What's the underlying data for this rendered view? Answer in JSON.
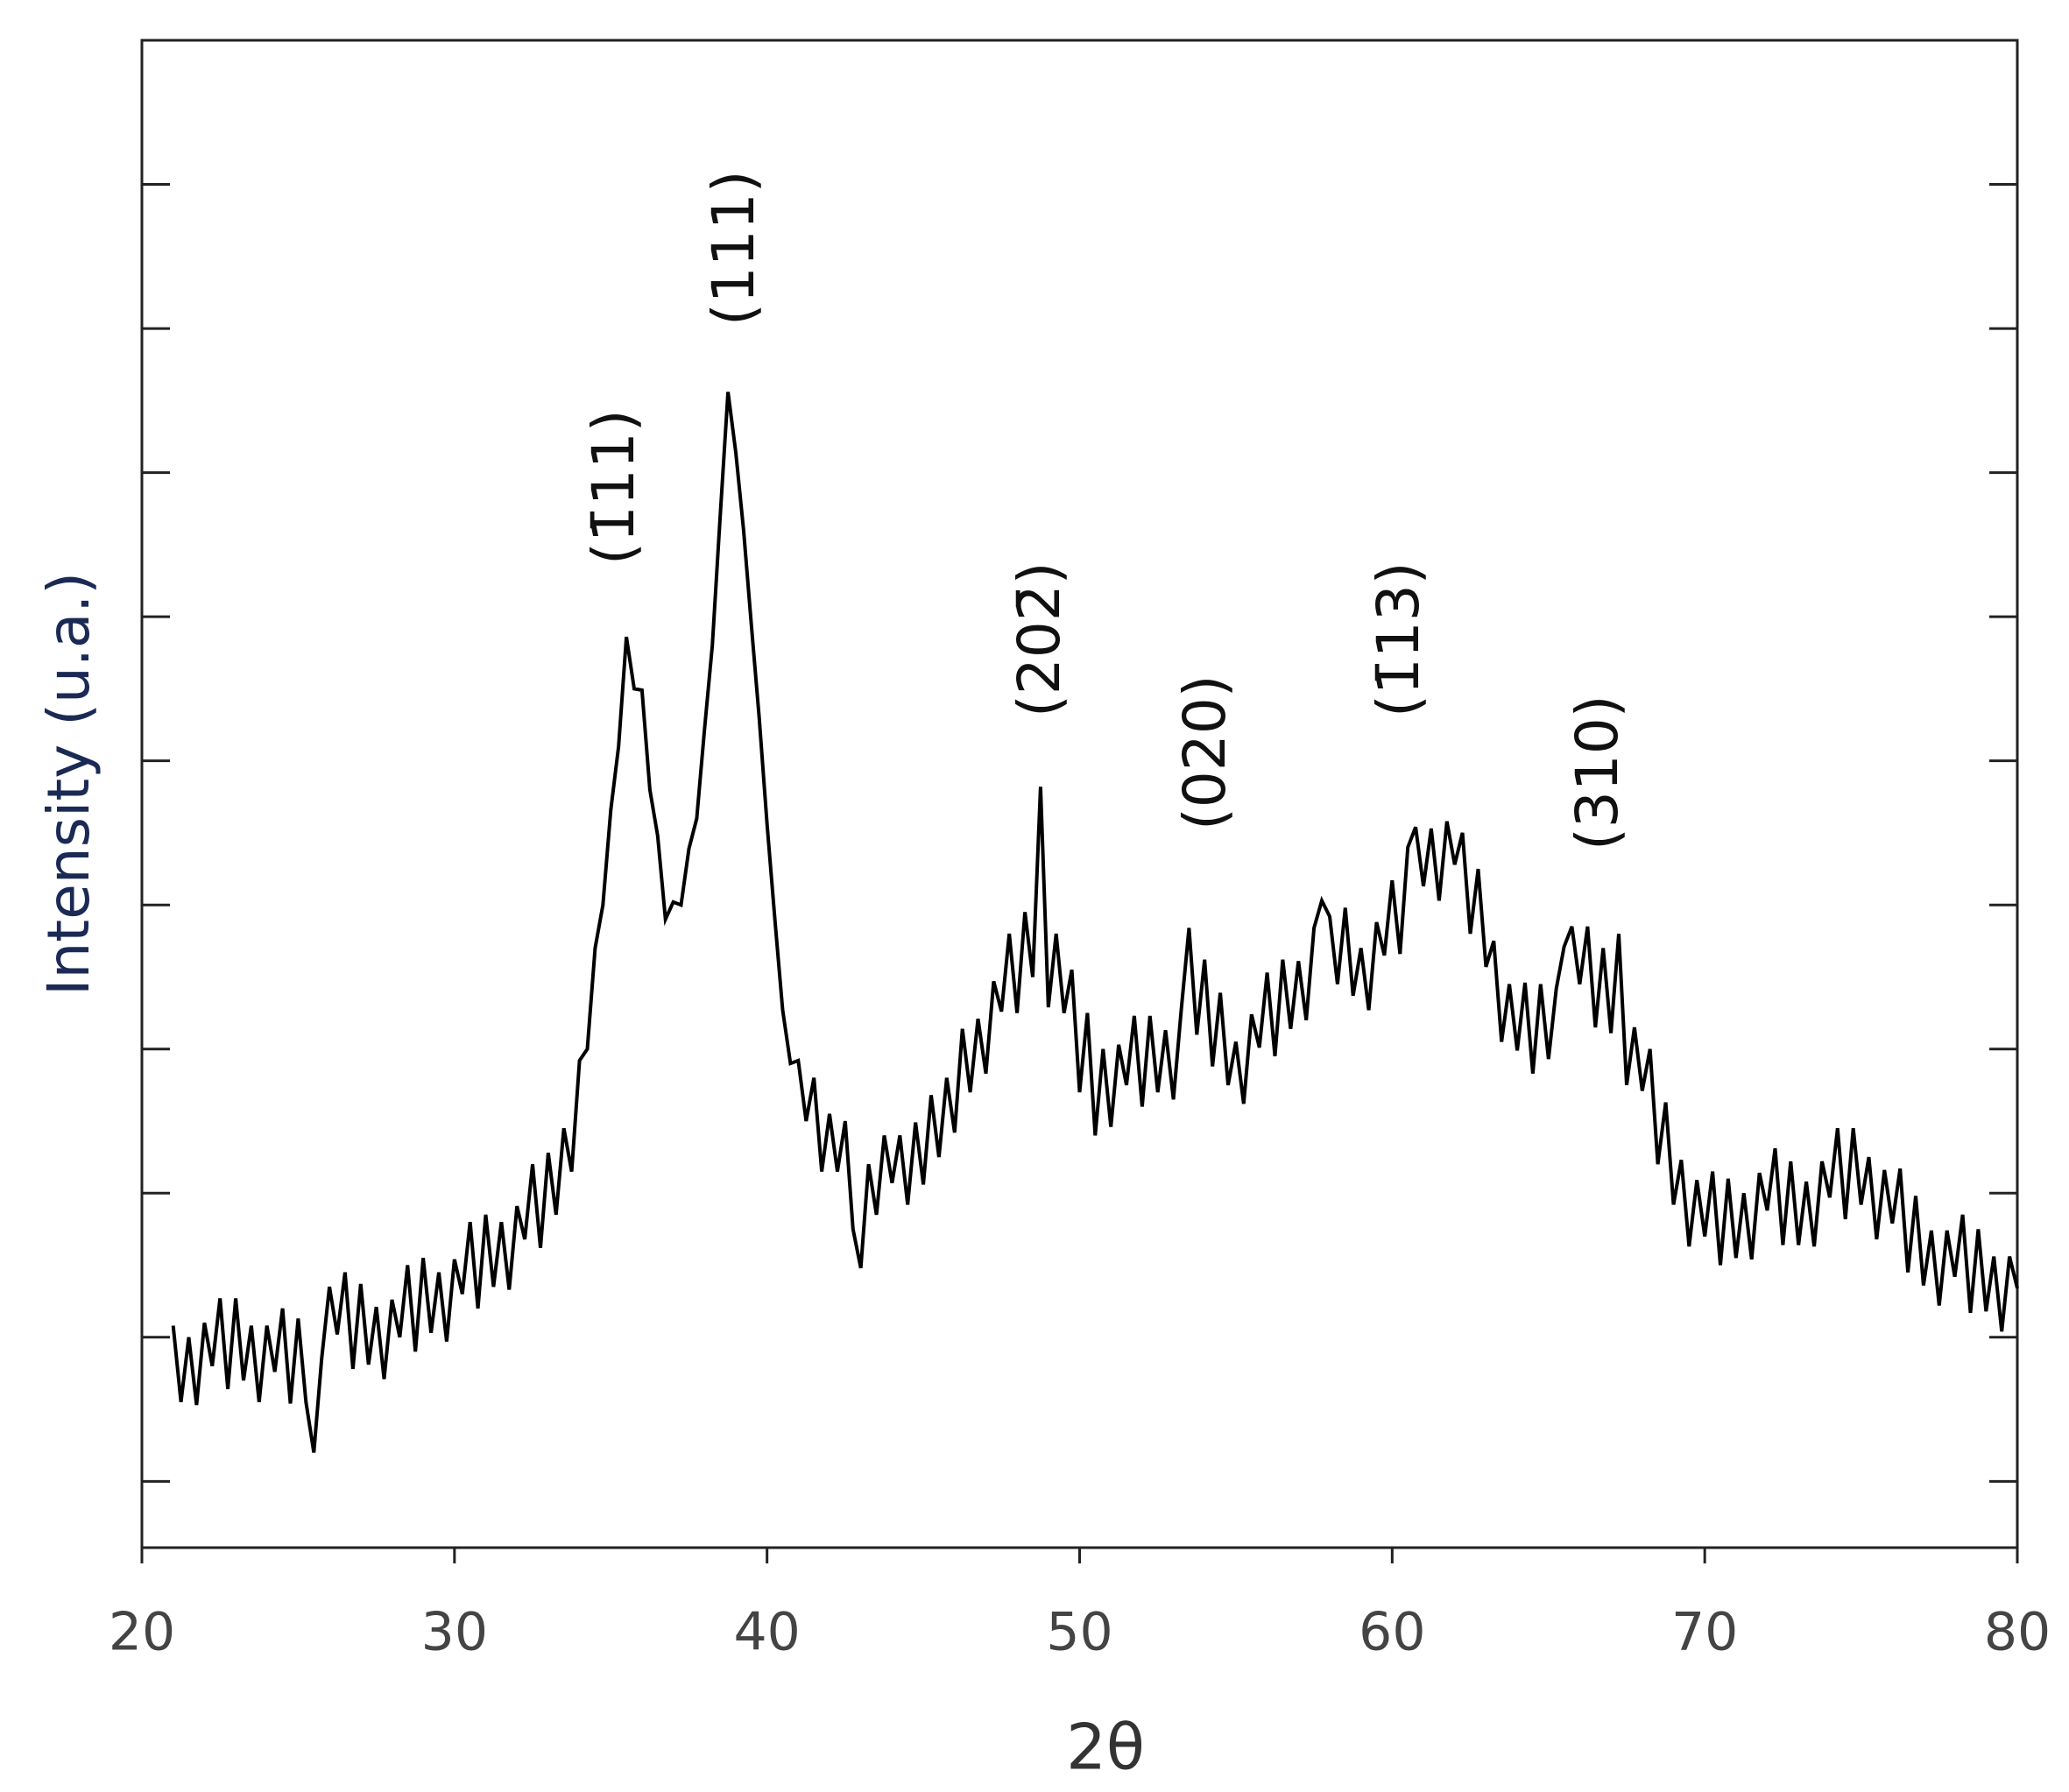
{
  "chart_data": {
    "type": "line",
    "x_label": "2θ",
    "y_label": "Intensity (u.a.)",
    "annotations": [
      "(1̄11)",
      "(111)",
      "(202̄)",
      "(020)",
      "(1̄13)",
      "(310)"
    ],
    "xlim": [
      20,
      80
    ],
    "xticks": [
      20,
      30,
      40,
      50,
      60,
      70,
      80
    ],
    "ylim": [
      0.54,
      11
    ],
    "yticks": [
      1,
      2,
      3,
      4,
      5,
      6,
      7,
      8,
      9,
      10
    ],
    "color": "#000000",
    "x": [
      21,
      21.25,
      21.5,
      21.75,
      22,
      22.25,
      22.5,
      22.75,
      23,
      23.25,
      23.5,
      23.75,
      24,
      24.25,
      24.5,
      24.75,
      25,
      25.25,
      25.5,
      25.75,
      26,
      26.25,
      26.5,
      26.75,
      27,
      27.25,
      27.5,
      27.75,
      28,
      28.25,
      28.5,
      28.75,
      29,
      29.25,
      29.5,
      29.75,
      30,
      30.25,
      30.5,
      30.75,
      31,
      31.25,
      31.5,
      31.75,
      32,
      32.25,
      32.5,
      32.75,
      33,
      33.25,
      33.5,
      33.75,
      34,
      34.25,
      34.5,
      34.75,
      35,
      35.25,
      35.5,
      35.75,
      36,
      36.25,
      36.5,
      36.75,
      37,
      37.25,
      37.5,
      37.75,
      38,
      38.25,
      38.5,
      38.75,
      39,
      39.25,
      39.5,
      39.75,
      40,
      40.25,
      40.5,
      40.75,
      41,
      41.25,
      41.5,
      41.75,
      42,
      42.25,
      42.5,
      42.75,
      43,
      43.25,
      43.5,
      43.75,
      44,
      44.25,
      44.5,
      44.75,
      45,
      45.25,
      45.5,
      45.75,
      46,
      46.25,
      46.5,
      46.75,
      47,
      47.25,
      47.5,
      47.75,
      48,
      48.25,
      48.5,
      48.75,
      49,
      49.25,
      49.5,
      49.75,
      50,
      50.25,
      50.5,
      50.75,
      51,
      51.25,
      51.5,
      51.75,
      52,
      52.25,
      52.5,
      52.75,
      53,
      53.25,
      53.5,
      53.75,
      54,
      54.25,
      54.5,
      54.75,
      55,
      55.25,
      55.5,
      55.75,
      56,
      56.25,
      56.5,
      56.75,
      57,
      57.25,
      57.5,
      57.75,
      58,
      58.25,
      58.5,
      58.75,
      59,
      59.25,
      59.5,
      59.75,
      60,
      60.25,
      60.5,
      60.75,
      61,
      61.25,
      61.5,
      61.75,
      62,
      62.25,
      62.5,
      62.75,
      63,
      63.25,
      63.5,
      63.75,
      64,
      64.25,
      64.5,
      64.75,
      65,
      65.25,
      65.5,
      65.75,
      66,
      66.25,
      66.5,
      66.75,
      67,
      67.25,
      67.5,
      67.75,
      68,
      68.25,
      68.5,
      68.75,
      69,
      69.25,
      69.5,
      69.75,
      70,
      70.25,
      70.5,
      70.75,
      71,
      71.25,
      71.5,
      71.75,
      72,
      72.25,
      72.5,
      72.75,
      73,
      73.25,
      73.5,
      73.75,
      74,
      74.25,
      74.5,
      74.75,
      75,
      75.25,
      75.5,
      75.75,
      76,
      76.25,
      76.5,
      76.75,
      77,
      77.25,
      77.5,
      77.75,
      78,
      78.25,
      78.5,
      78.75,
      79,
      79.25,
      79.5,
      79.75,
      80
    ],
    "values": [
      2.08,
      1.55,
      2.0,
      1.53,
      2.1,
      1.8,
      2.27,
      1.64,
      2.27,
      1.7,
      2.08,
      1.55,
      2.08,
      1.76,
      2.2,
      1.54,
      2.13,
      1.55,
      1.2,
      1.85,
      2.35,
      2.02,
      2.45,
      1.78,
      2.37,
      1.81,
      2.21,
      1.71,
      2.26,
      2.0,
      2.5,
      1.9,
      2.55,
      2.03,
      2.45,
      1.97,
      2.54,
      2.3,
      2.8,
      2.2,
      2.85,
      2.35,
      2.8,
      2.33,
      2.91,
      2.68,
      3.2,
      2.62,
      3.28,
      2.85,
      3.45,
      3.15,
      3.92,
      4.0,
      4.7,
      5.0,
      5.66,
      6.1,
      6.86,
      6.5,
      6.49,
      5.8,
      5.48,
      4.9,
      5.02,
      5.0,
      5.39,
      5.6,
      6.22,
      6.8,
      7.69,
      8.56,
      8.14,
      7.6,
      6.94,
      6.3,
      5.56,
      4.9,
      4.27,
      3.9,
      3.92,
      3.5,
      3.8,
      3.15,
      3.55,
      3.15,
      3.5,
      2.75,
      2.48,
      3.2,
      2.85,
      3.4,
      3.07,
      3.4,
      2.92,
      3.49,
      3.06,
      3.68,
      3.25,
      3.8,
      3.42,
      4.14,
      3.7,
      4.21,
      3.83,
      4.47,
      4.26,
      4.8,
      4.25,
      4.95,
      4.5,
      5.82,
      4.29,
      4.8,
      4.25,
      4.55,
      3.7,
      4.25,
      3.4,
      4.0,
      3.46,
      4.03,
      3.75,
      4.23,
      3.6,
      4.23,
      3.7,
      4.13,
      3.65,
      4.27,
      4.84,
      4.1,
      4.62,
      3.88,
      4.39,
      3.75,
      4.05,
      3.62,
      4.24,
      4.01,
      4.53,
      3.95,
      4.62,
      4.14,
      4.61,
      4.2,
      4.84,
      5.03,
      4.92,
      4.45,
      4.98,
      4.37,
      4.7,
      4.27,
      4.88,
      4.65,
      5.17,
      4.66,
      5.4,
      5.54,
      5.13,
      5.53,
      5.03,
      5.58,
      5.28,
      5.5,
      4.8,
      5.25,
      4.57,
      4.75,
      4.05,
      4.45,
      3.99,
      4.46,
      3.83,
      4.45,
      3.93,
      4.42,
      4.71,
      4.85,
      4.45,
      4.85,
      4.15,
      4.7,
      4.11,
      4.8,
      3.75,
      4.15,
      3.71,
      4.0,
      3.2,
      3.63,
      2.92,
      3.23,
      2.63,
      3.09,
      2.7,
      3.15,
      2.5,
      3.1,
      2.55,
      3.0,
      2.54,
      3.14,
      2.88,
      3.31,
      2.64,
      3.22,
      2.64,
      3.08,
      2.63,
      3.22,
      2.97,
      3.45,
      2.82,
      3.45,
      2.92,
      3.25,
      2.68,
      3.16,
      2.79,
      3.17,
      2.45,
      2.98,
      2.36,
      2.74,
      2.22,
      2.74,
      2.42,
      2.85,
      2.17,
      2.75,
      2.18,
      2.56,
      2.04,
      2.56,
      2.34
    ]
  }
}
